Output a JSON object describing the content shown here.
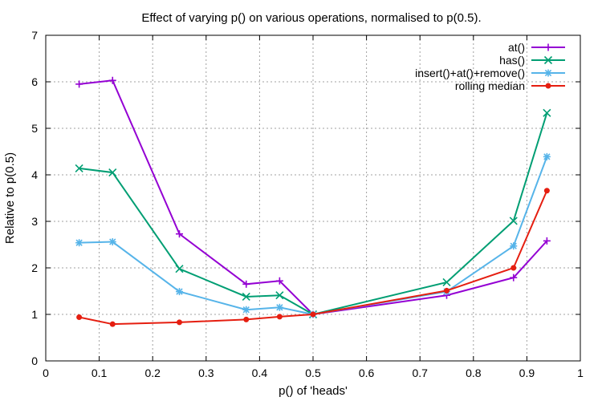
{
  "chart_data": {
    "type": "line",
    "title": "Effect of varying p() on various operations, normalised to p(0.5).",
    "xlabel": "p() of 'heads'",
    "ylabel": "Relative to p(0.5)",
    "xlim": [
      0,
      1
    ],
    "ylim": [
      0,
      7
    ],
    "xticks": [
      0,
      0.1,
      0.2,
      0.3,
      0.4,
      0.5,
      0.6,
      0.7,
      0.8,
      0.9,
      1
    ],
    "xtick_labels": [
      "0",
      "0.1",
      "0.2",
      "0.3",
      "0.4",
      "0.5",
      "0.6",
      "0.7",
      "0.8",
      "0.9",
      "1"
    ],
    "yticks": [
      0,
      1,
      2,
      3,
      4,
      5,
      6,
      7
    ],
    "ytick_labels": [
      "0",
      "1",
      "2",
      "3",
      "4",
      "5",
      "6",
      "7"
    ],
    "grid": true,
    "legend_position": "top-right",
    "series": [
      {
        "name": "at()",
        "color": "#9400d3",
        "marker": "plus",
        "x": [
          0.0625,
          0.125,
          0.25,
          0.375,
          0.4375,
          0.5,
          0.75,
          0.875,
          0.9375
        ],
        "y": [
          5.95,
          6.03,
          2.73,
          1.65,
          1.72,
          1.0,
          1.41,
          1.79,
          2.58
        ]
      },
      {
        "name": "has()",
        "color": "#009e73",
        "marker": "cross",
        "x": [
          0.0625,
          0.125,
          0.25,
          0.375,
          0.4375,
          0.5,
          0.75,
          0.875,
          0.9375
        ],
        "y": [
          4.14,
          4.05,
          1.98,
          1.38,
          1.41,
          1.0,
          1.69,
          3.01,
          5.33
        ]
      },
      {
        "name": "insert()+at()+remove()",
        "color": "#56b4e9",
        "marker": "star",
        "x": [
          0.0625,
          0.125,
          0.25,
          0.375,
          0.4375,
          0.5,
          0.75,
          0.875,
          0.9375
        ],
        "y": [
          2.54,
          2.56,
          1.49,
          1.1,
          1.15,
          1.0,
          1.49,
          2.47,
          4.39
        ]
      },
      {
        "name": "rolling median",
        "color": "#e51e10",
        "marker": "dot",
        "x": [
          0.0625,
          0.125,
          0.25,
          0.375,
          0.4375,
          0.5,
          0.75,
          0.875,
          0.9375
        ],
        "y": [
          0.94,
          0.79,
          0.83,
          0.89,
          0.95,
          1.0,
          1.51,
          2.0,
          3.66
        ]
      }
    ]
  }
}
